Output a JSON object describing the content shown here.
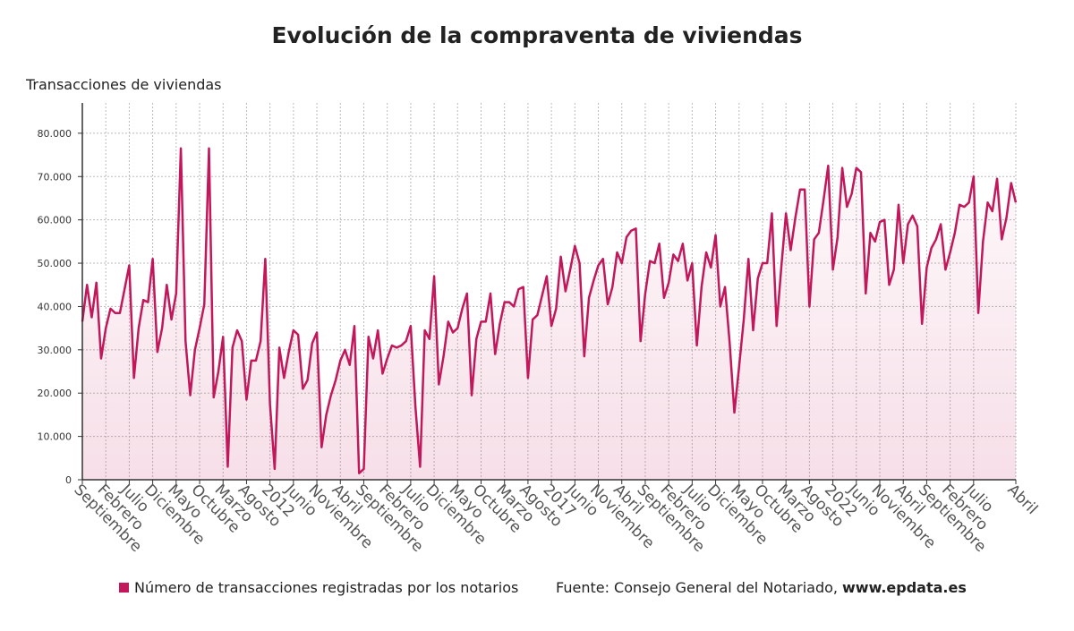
{
  "chart_data": {
    "type": "line",
    "title": "Evolución de la compraventa de viviendas",
    "y_axis_label": "Transacciones de viviendas",
    "source": {
      "text": "Fuente: Consejo General del Notariado,",
      "site": "www.epdata.es"
    },
    "categories": [
      "Septiembre",
      null,
      null,
      null,
      null,
      "Febrero",
      null,
      null,
      null,
      null,
      "Julio",
      null,
      null,
      null,
      null,
      "Diciembre",
      null,
      null,
      null,
      null,
      "Mayo",
      null,
      null,
      null,
      null,
      "Octubre",
      null,
      null,
      null,
      null,
      "Marzo",
      null,
      null,
      null,
      null,
      "Agosto",
      null,
      null,
      null,
      null,
      "2012",
      null,
      null,
      null,
      null,
      "Junio",
      null,
      null,
      null,
      null,
      "Noviembre",
      null,
      null,
      null,
      null,
      "Abril",
      null,
      null,
      null,
      null,
      "Septiembre",
      null,
      null,
      null,
      null,
      "Febrero",
      null,
      null,
      null,
      null,
      "Julio",
      null,
      null,
      null,
      null,
      "Diciembre",
      null,
      null,
      null,
      null,
      "Mayo",
      null,
      null,
      null,
      null,
      "Octubre",
      null,
      null,
      null,
      null,
      "Marzo",
      null,
      null,
      null,
      null,
      "Agosto",
      null,
      null,
      null,
      null,
      "2017",
      null,
      null,
      null,
      null,
      "Junio",
      null,
      null,
      null,
      null,
      "Noviembre",
      null,
      null,
      null,
      null,
      "Abril",
      null,
      null,
      null,
      null,
      "Septiembre",
      null,
      null,
      null,
      null,
      "Febrero",
      null,
      null,
      null,
      null,
      "Julio",
      null,
      null,
      null,
      null,
      "Diciembre",
      null,
      null,
      null,
      null,
      "Mayo",
      null,
      null,
      null,
      null,
      "Octubre",
      null,
      null,
      null,
      null,
      "Marzo",
      null,
      null,
      null,
      null,
      "Agosto",
      null,
      null,
      null,
      null,
      "2022",
      null,
      null,
      null,
      null,
      "Junio",
      null,
      null,
      null,
      null,
      "Noviembre",
      null,
      null,
      null,
      null,
      "Abril",
      null,
      null,
      null,
      null,
      "Septiembre",
      null,
      null,
      null,
      null,
      "Febrero",
      null,
      null,
      null,
      null,
      "Julio",
      null,
      null,
      null,
      null,
      null,
      null,
      null,
      null,
      "Abril"
    ],
    "series": [
      {
        "name": "Número de transacciones registradas por los notarios",
        "color": "#c2185b",
        "values": [
          36500,
          45000,
          37500,
          45500,
          28000,
          35000,
          39500,
          38500,
          38500,
          44000,
          49500,
          23500,
          35000,
          41500,
          41000,
          51000,
          29500,
          35000,
          45000,
          37000,
          43000,
          76500,
          32000,
          19500,
          30000,
          35000,
          40500,
          76500,
          19000,
          25000,
          33000,
          3000,
          30500,
          34500,
          32000,
          18500,
          27500,
          27500,
          32000,
          51000,
          17500,
          2500,
          30500,
          23500,
          29500,
          34500,
          33500,
          21000,
          23000,
          31500,
          34000,
          7500,
          15000,
          19500,
          23000,
          27500,
          30000,
          26500,
          35500,
          1500,
          2500,
          33000,
          28000,
          34500,
          24500,
          28000,
          31000,
          30500,
          31000,
          32000,
          35500,
          17000,
          3000,
          34500,
          32500,
          47000,
          22000,
          28500,
          36500,
          34000,
          35000,
          39500,
          43000,
          19500,
          32500,
          36500,
          36500,
          43000,
          29000,
          36000,
          41000,
          41000,
          40000,
          44000,
          44500,
          23500,
          37000,
          38000,
          42500,
          47000,
          35500,
          39500,
          51500,
          43500,
          48500,
          54000,
          50000,
          28500,
          42000,
          46000,
          49500,
          51000,
          40500,
          44500,
          52500,
          50000,
          56000,
          57500,
          58000,
          32000,
          43000,
          50500,
          50000,
          54500,
          42000,
          45500,
          52000,
          50500,
          54500,
          46000,
          50000,
          31000,
          44500,
          52500,
          49000,
          56500,
          40000,
          44500,
          31500,
          15500,
          26000,
          37000,
          51000,
          34500,
          46500,
          50000,
          50000,
          61500,
          35500,
          49000,
          61500,
          53000,
          60500,
          67000,
          67000,
          40000,
          55500,
          57000,
          64500,
          72500,
          48500,
          56000,
          72000,
          63000,
          66000,
          72000,
          71000,
          43000,
          57000,
          55000,
          59500,
          60000,
          45000,
          48500,
          63500,
          50000,
          59000,
          61000,
          58500,
          36000,
          49000,
          53500,
          55500,
          59000,
          48500,
          52500,
          57000,
          63500,
          63000,
          64000,
          70000,
          38500,
          55000,
          64000,
          62000,
          69500,
          55500,
          60500,
          68500,
          64000
        ]
      }
    ],
    "ylim": [
      0,
      87000
    ],
    "yticks": [
      0,
      {
        "value": 10000,
        "label": "10.000"
      },
      {
        "value": 20000,
        "label": "20.000"
      },
      {
        "value": 30000,
        "label": "30.000"
      },
      {
        "value": 40000,
        "label": "40.000"
      },
      {
        "value": 50000,
        "label": "50.000"
      },
      {
        "value": 60000,
        "label": "60.000"
      },
      {
        "value": 70000,
        "label": "70.000"
      },
      {
        "value": 80000,
        "label": "80.000"
      }
    ],
    "grid": true,
    "legend": "bottom"
  }
}
